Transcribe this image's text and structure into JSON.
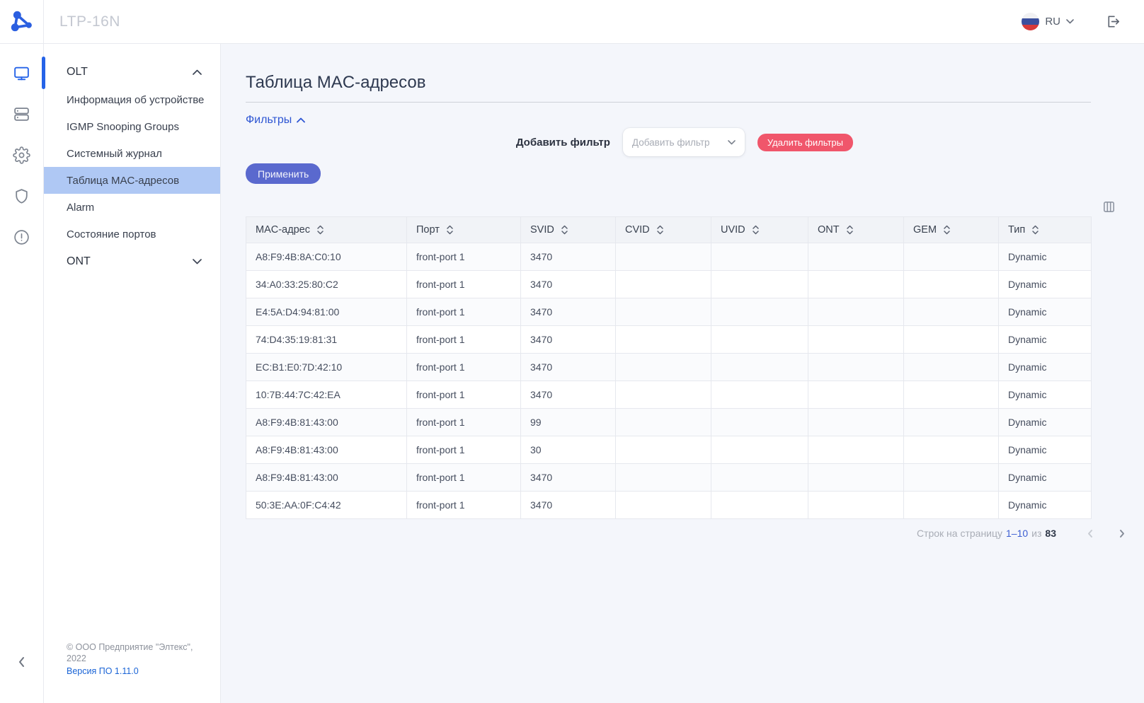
{
  "header": {
    "app_title": "LTP-16N",
    "language": "RU"
  },
  "icon_rail": {
    "items": [
      "monitor-icon",
      "modules-icon",
      "gear-icon",
      "shield-icon",
      "alert-icon"
    ],
    "active_item": "monitor-icon"
  },
  "sidebar": {
    "menu": [
      {
        "label": "OLT",
        "type": "section",
        "state": "expanded"
      },
      {
        "label": "Информация об устройстве",
        "type": "item"
      },
      {
        "label": "IGMP Snooping Groups",
        "type": "item"
      },
      {
        "label": "Системный журнал",
        "type": "item"
      },
      {
        "label": "Таблица MAC-адресов",
        "type": "item",
        "selected": true
      },
      {
        "label": "Alarm",
        "type": "item"
      },
      {
        "label": "Состояние портов",
        "type": "item"
      },
      {
        "label": "ONT",
        "type": "section",
        "state": "collapsed"
      }
    ],
    "footer": {
      "copyright": "© ООО Предприятие \"Элтекс\", 2022",
      "version": "Версия ПО 1.11.0"
    }
  },
  "main": {
    "page_title": "Таблица MAC-адресов",
    "filters": {
      "toggle_label": "Фильтры",
      "add_filter_label": "Добавить фильтр",
      "add_filter_placeholder": "Добавить фильтр",
      "remove_filters_label": "Удалить фильтры",
      "apply_label": "Применить"
    },
    "table": {
      "columns": [
        {
          "key": "mac",
          "label": "MAC-адрес"
        },
        {
          "key": "port",
          "label": "Порт"
        },
        {
          "key": "svid",
          "label": "SVID"
        },
        {
          "key": "cvid",
          "label": "CVID"
        },
        {
          "key": "uvid",
          "label": "UVID"
        },
        {
          "key": "ont",
          "label": "ONT"
        },
        {
          "key": "gem",
          "label": "GEM"
        },
        {
          "key": "type",
          "label": "Тип"
        }
      ],
      "rows": [
        {
          "mac": "A8:F9:4B:8A:C0:10",
          "port": "front-port 1",
          "svid": "3470",
          "cvid": "",
          "uvid": "",
          "ont": "",
          "gem": "",
          "type": "Dynamic"
        },
        {
          "mac": "34:A0:33:25:80:C2",
          "port": "front-port 1",
          "svid": "3470",
          "cvid": "",
          "uvid": "",
          "ont": "",
          "gem": "",
          "type": "Dynamic"
        },
        {
          "mac": "E4:5A:D4:94:81:00",
          "port": "front-port 1",
          "svid": "3470",
          "cvid": "",
          "uvid": "",
          "ont": "",
          "gem": "",
          "type": "Dynamic"
        },
        {
          "mac": "74:D4:35:19:81:31",
          "port": "front-port 1",
          "svid": "3470",
          "cvid": "",
          "uvid": "",
          "ont": "",
          "gem": "",
          "type": "Dynamic"
        },
        {
          "mac": "EC:B1:E0:7D:42:10",
          "port": "front-port 1",
          "svid": "3470",
          "cvid": "",
          "uvid": "",
          "ont": "",
          "gem": "",
          "type": "Dynamic"
        },
        {
          "mac": "10:7B:44:7C:42:EA",
          "port": "front-port 1",
          "svid": "3470",
          "cvid": "",
          "uvid": "",
          "ont": "",
          "gem": "",
          "type": "Dynamic"
        },
        {
          "mac": "A8:F9:4B:81:43:00",
          "port": "front-port 1",
          "svid": "99",
          "cvid": "",
          "uvid": "",
          "ont": "",
          "gem": "",
          "type": "Dynamic"
        },
        {
          "mac": "A8:F9:4B:81:43:00",
          "port": "front-port 1",
          "svid": "30",
          "cvid": "",
          "uvid": "",
          "ont": "",
          "gem": "",
          "type": "Dynamic"
        },
        {
          "mac": "A8:F9:4B:81:43:00",
          "port": "front-port 1",
          "svid": "3470",
          "cvid": "",
          "uvid": "",
          "ont": "",
          "gem": "",
          "type": "Dynamic"
        },
        {
          "mac": "50:3E:AA:0F:C4:42",
          "port": "front-port 1",
          "svid": "3470",
          "cvid": "",
          "uvid": "",
          "ont": "",
          "gem": "",
          "type": "Dynamic"
        }
      ]
    },
    "pagination": {
      "rows_per_page_label": "Строк на страницу",
      "range": "1–10",
      "of_label": "из",
      "total": "83"
    }
  },
  "colors": {
    "accent": "#5A69CE",
    "danger": "#F0566B",
    "link": "#2D55D3",
    "selected_bg": "#AFC8F4",
    "logo_blue": "#2B5FE0",
    "active_icon": "#2563E8"
  }
}
